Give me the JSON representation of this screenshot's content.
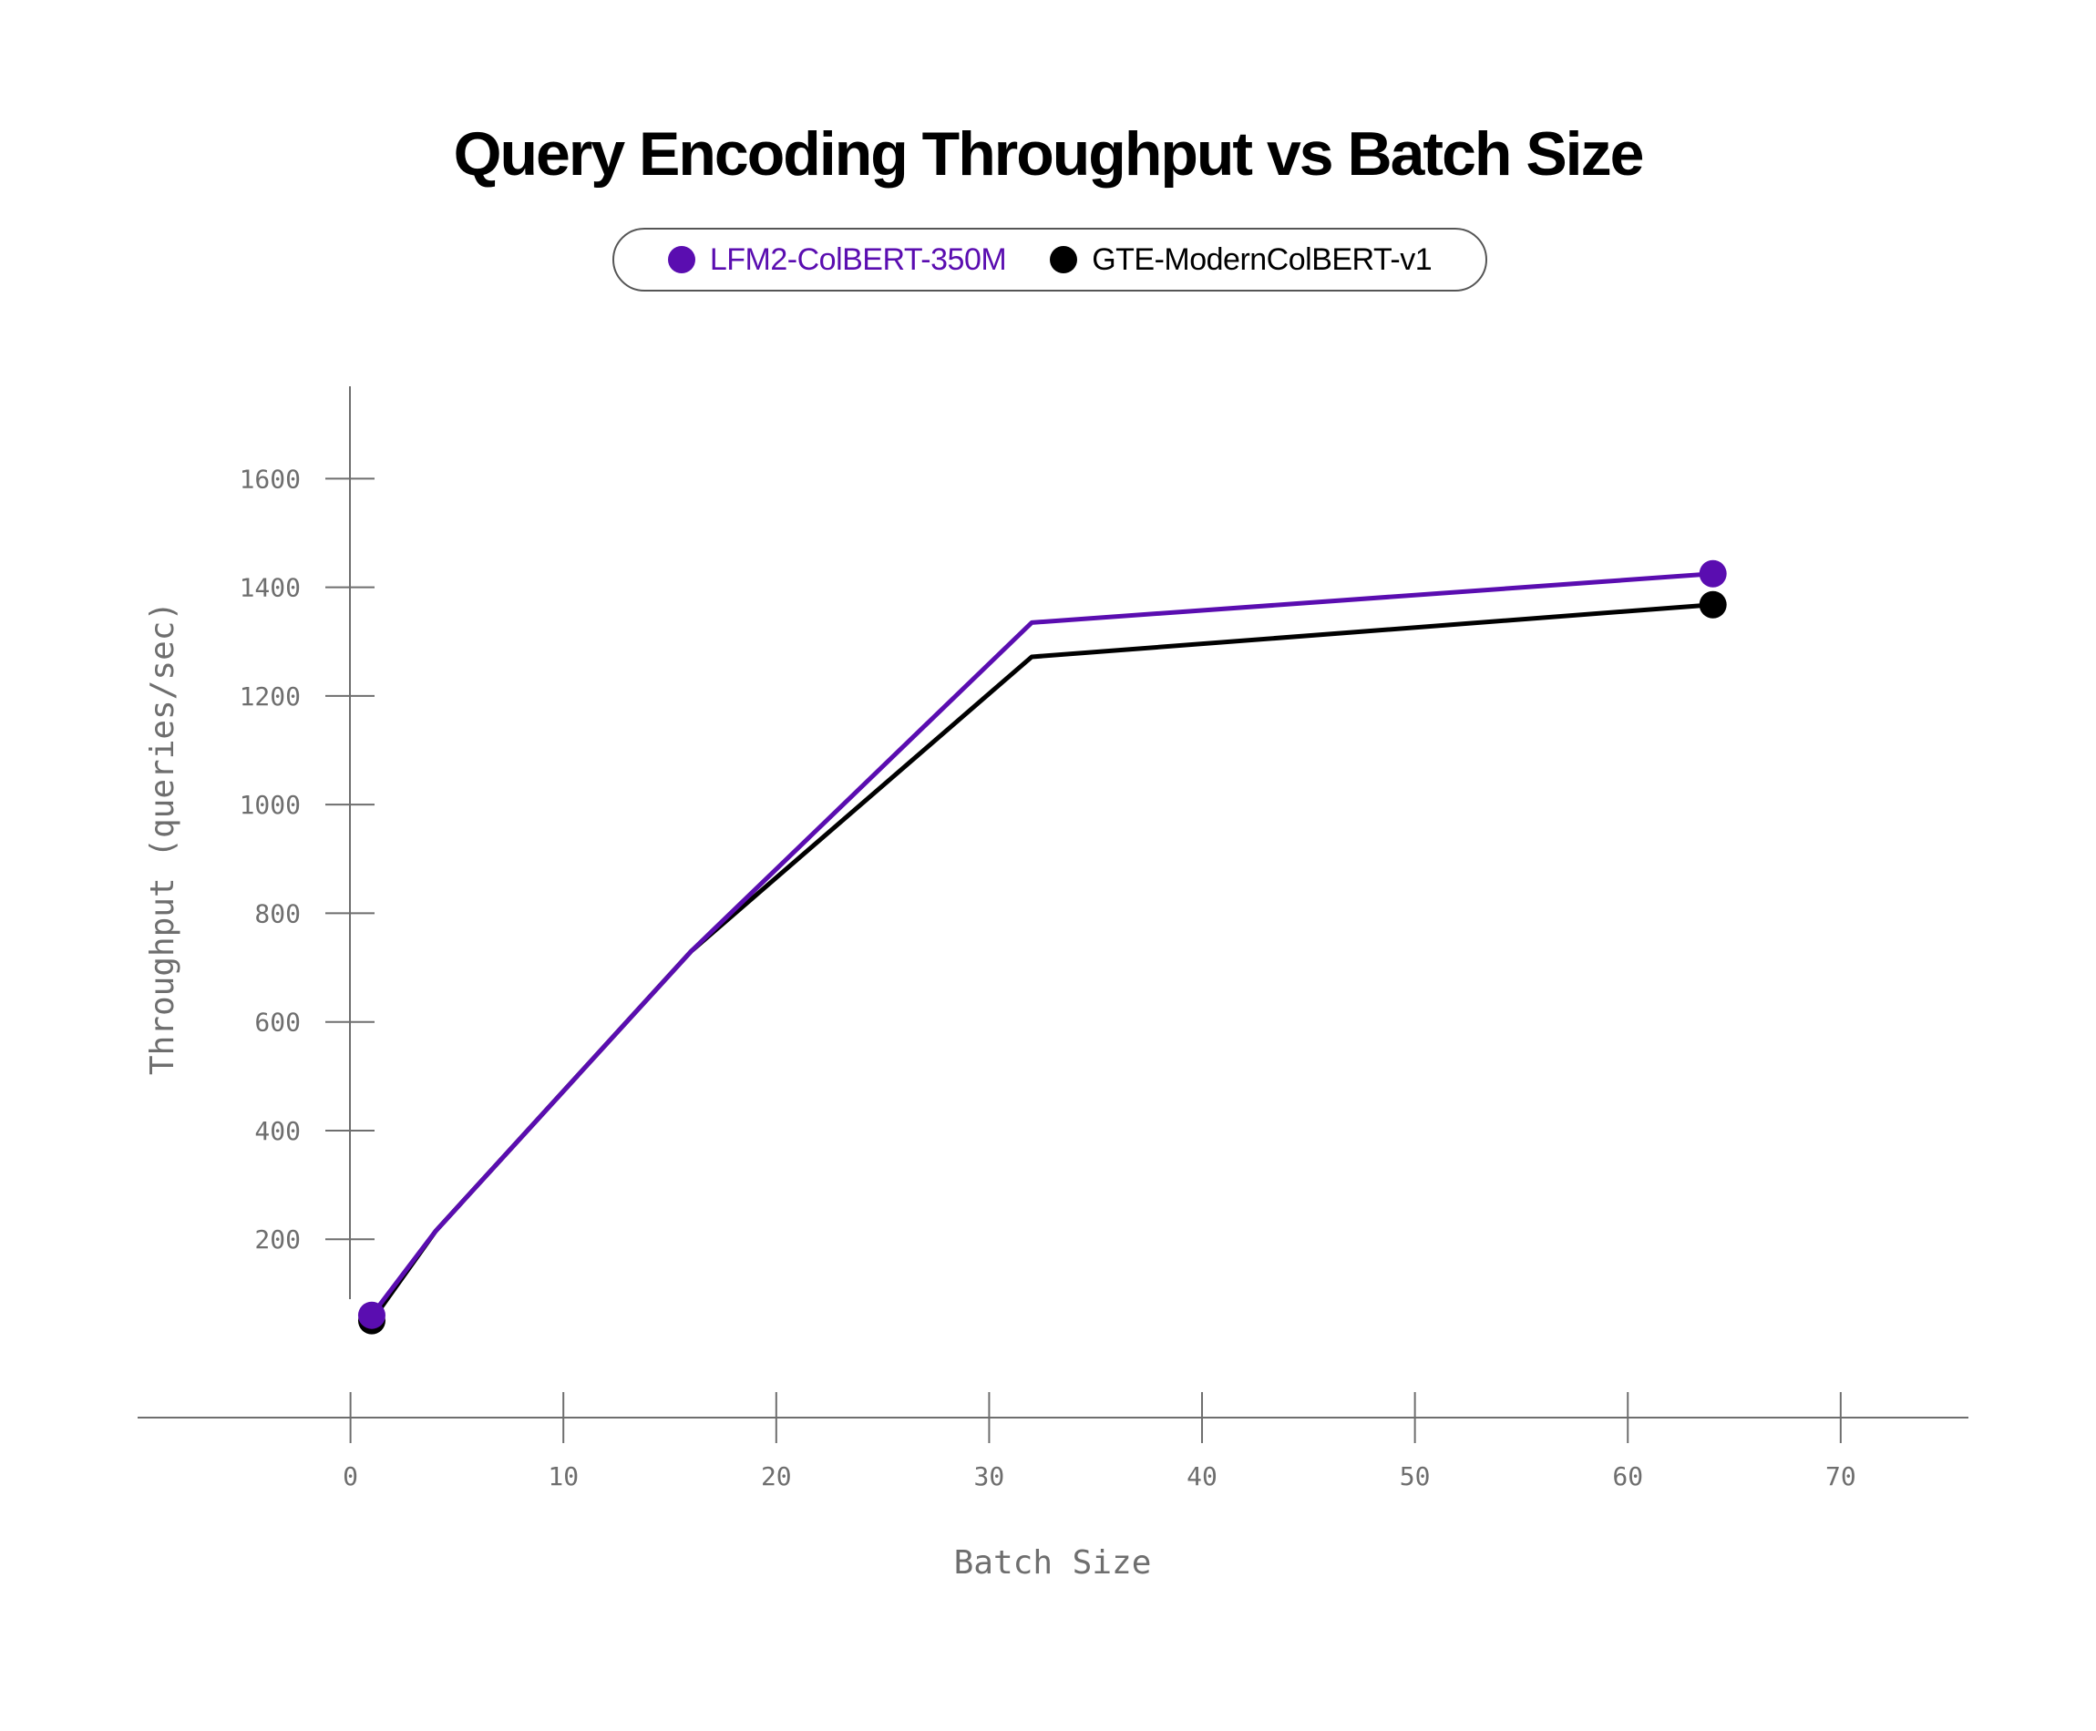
{
  "chart_data": {
    "type": "line",
    "title": "Query Encoding Throughput vs Batch Size",
    "xlabel": "Batch Size",
    "ylabel": "Throughput (queries/sec)",
    "xlim": [
      -10,
      76
    ],
    "ylim": [
      -130,
      1770
    ],
    "x_ticks": [
      0,
      10,
      20,
      30,
      40,
      50,
      60,
      70
    ],
    "y_ticks": [
      200,
      400,
      600,
      800,
      1000,
      1200,
      1400,
      1600
    ],
    "grid": false,
    "legend_position": "top-center",
    "series": [
      {
        "name": "LFM2-ColBERT-350M",
        "color": "#5a0db0",
        "x": [
          1,
          4,
          16,
          32,
          64
        ],
        "y": [
          60,
          215,
          730,
          1335,
          1425
        ]
      },
      {
        "name": "GTE-ModernColBERT-v1",
        "color": "#000000",
        "x": [
          1,
          4,
          16,
          32,
          64
        ],
        "y": [
          50,
          215,
          730,
          1272,
          1368
        ]
      }
    ]
  }
}
